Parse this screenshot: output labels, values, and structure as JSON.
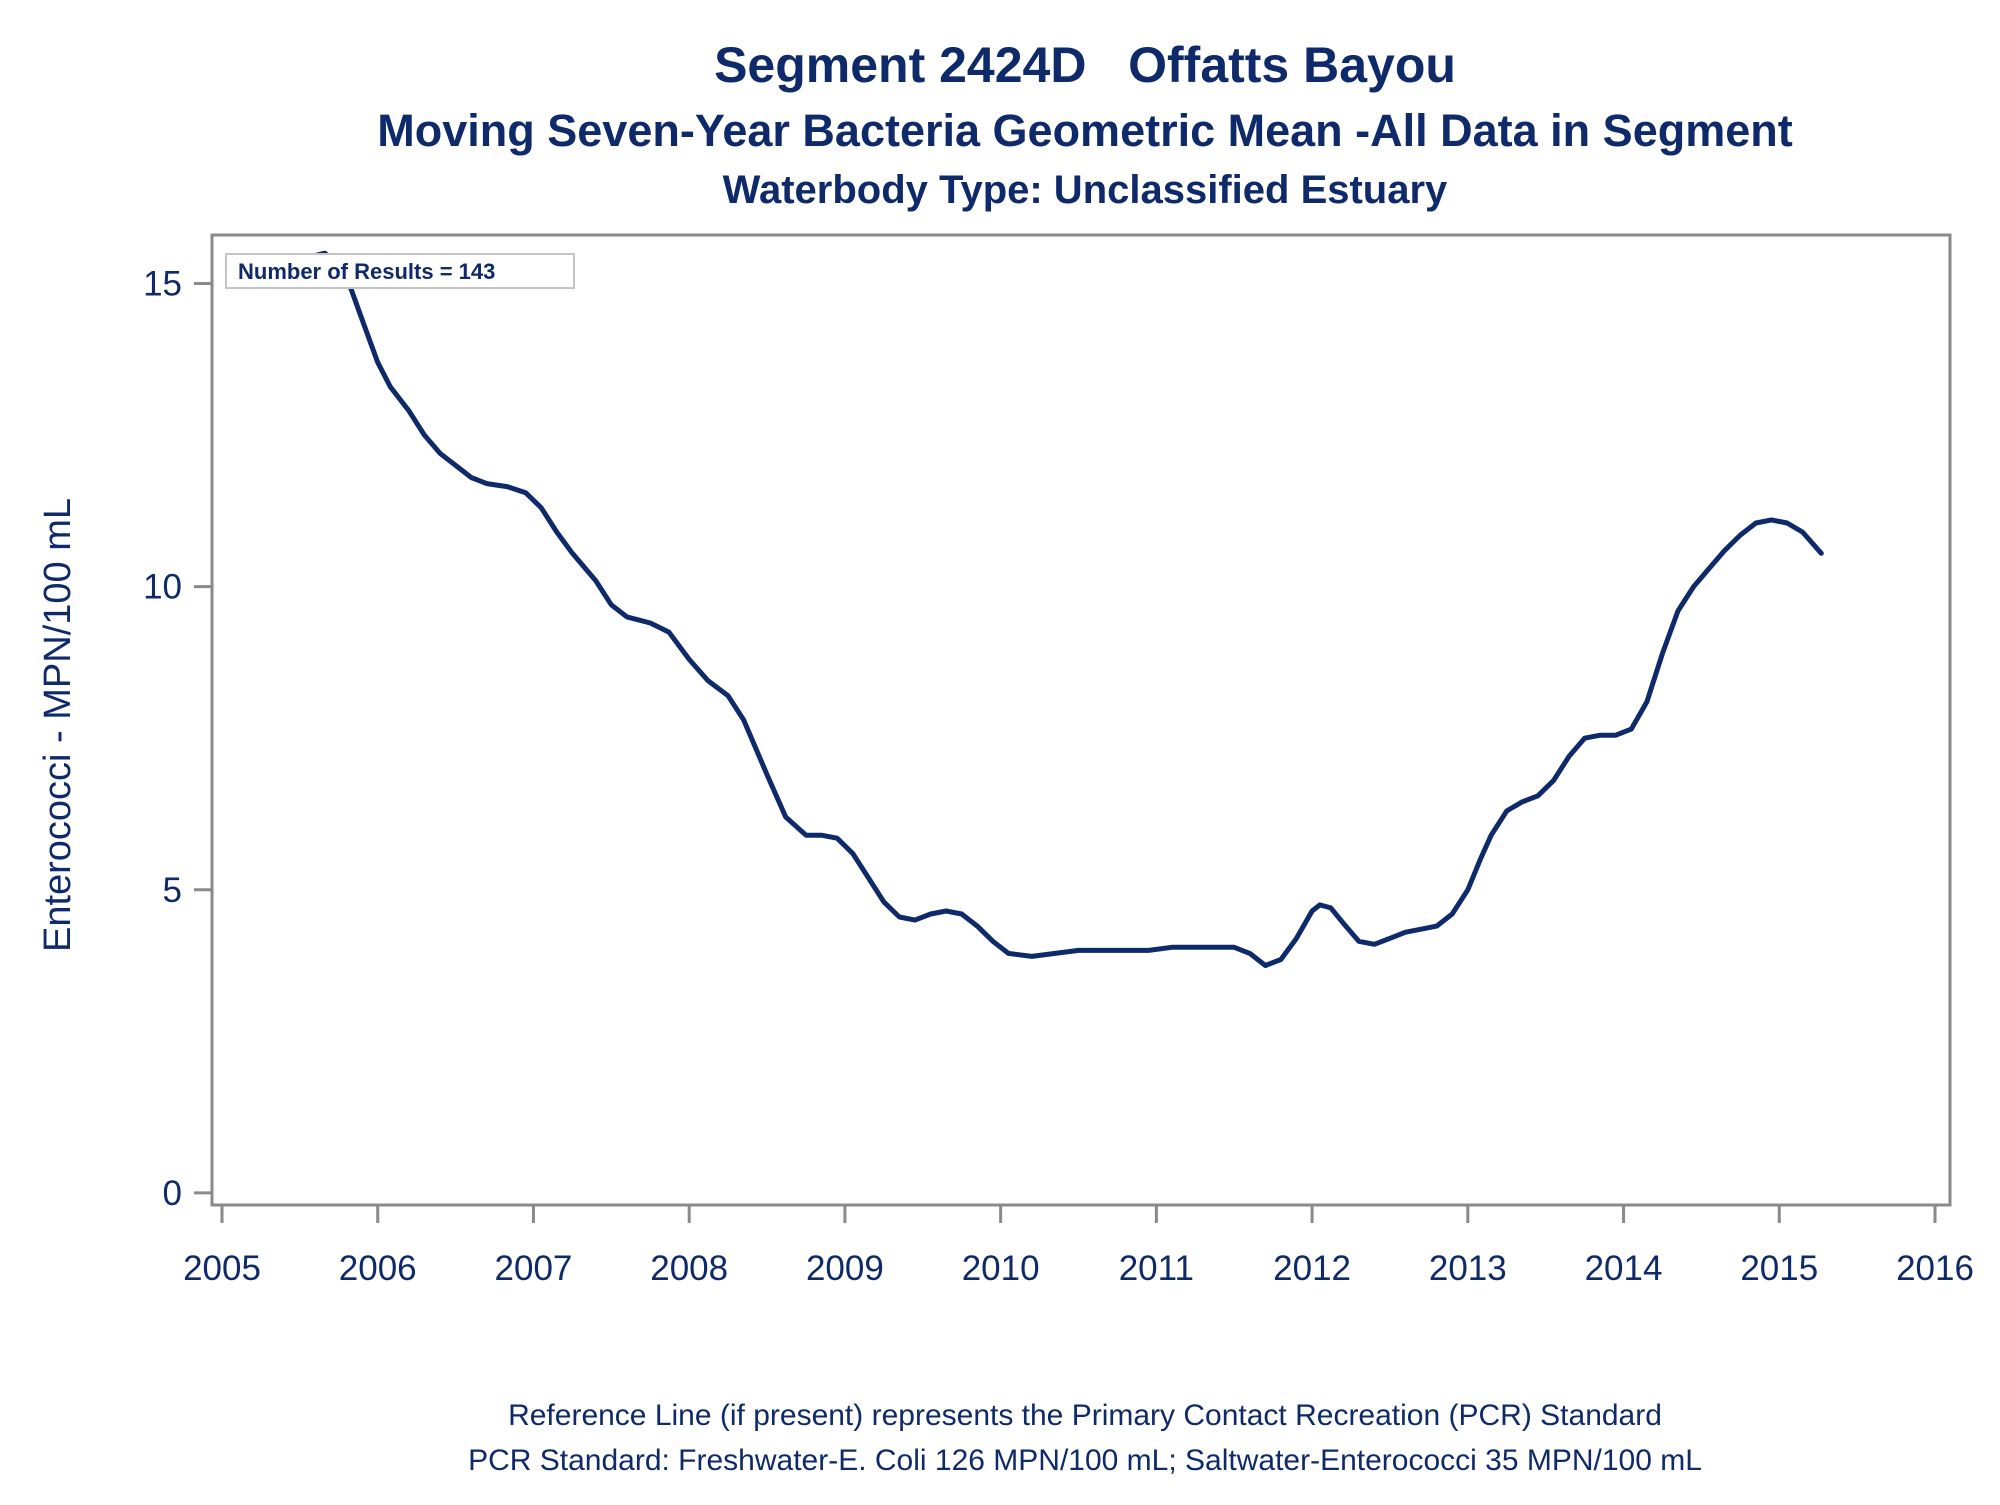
{
  "chart_data": {
    "type": "line",
    "title": "Segment 2424D   Offatts Bayou",
    "subtitle": "Moving Seven-Year Bacteria Geometric Mean -All Data in Segment",
    "subtitle2": "Waterbody Type: Unclassified Estuary",
    "ylabel": "Enterococci - MPN/100 mL",
    "xlabel": "",
    "xlim": [
      2005,
      2016
    ],
    "ylim": [
      -0.2,
      15.8
    ],
    "x_ticks": [
      2005,
      2006,
      2007,
      2008,
      2009,
      2010,
      2011,
      2012,
      2013,
      2014,
      2015,
      2016
    ],
    "x_tick_labels": [
      "2005",
      "2006",
      "2007",
      "2008",
      "2009",
      "2010",
      "2011",
      "2012",
      "2013",
      "2014",
      "2015",
      "2016"
    ],
    "y_ticks": [
      0,
      5,
      10,
      15
    ],
    "y_tick_labels": [
      "0",
      "5",
      "10",
      "15"
    ],
    "grid": false,
    "annotation": "Number of Results = 143",
    "footnotes": [
      "Reference Line (if present) represents the Primary Contact Recreation (PCR) Standard",
      "PCR Standard: Freshwater-E. Coli 126 MPN/100 mL; Saltwater-Enterococci 35 MPN/100 mL"
    ],
    "line_color": "#0f2a6b",
    "series": [
      {
        "values": [
          [
            2005.58,
            15.45
          ],
          [
            2005.66,
            15.5
          ],
          [
            2005.75,
            15.3
          ],
          [
            2005.83,
            14.9
          ],
          [
            2005.9,
            14.4
          ],
          [
            2006.0,
            13.7
          ],
          [
            2006.08,
            13.3
          ],
          [
            2006.2,
            12.9
          ],
          [
            2006.3,
            12.5
          ],
          [
            2006.4,
            12.2
          ],
          [
            2006.5,
            12.0
          ],
          [
            2006.6,
            11.8
          ],
          [
            2006.7,
            11.7
          ],
          [
            2006.83,
            11.65
          ],
          [
            2006.95,
            11.55
          ],
          [
            2007.05,
            11.3
          ],
          [
            2007.15,
            10.9
          ],
          [
            2007.25,
            10.55
          ],
          [
            2007.4,
            10.1
          ],
          [
            2007.5,
            9.7
          ],
          [
            2007.6,
            9.5
          ],
          [
            2007.75,
            9.4
          ],
          [
            2007.87,
            9.25
          ],
          [
            2008.0,
            8.8
          ],
          [
            2008.12,
            8.45
          ],
          [
            2008.25,
            8.2
          ],
          [
            2008.35,
            7.8
          ],
          [
            2008.5,
            6.9
          ],
          [
            2008.62,
            6.2
          ],
          [
            2008.75,
            5.9
          ],
          [
            2008.85,
            5.9
          ],
          [
            2008.95,
            5.85
          ],
          [
            2009.05,
            5.6
          ],
          [
            2009.15,
            5.2
          ],
          [
            2009.25,
            4.8
          ],
          [
            2009.35,
            4.55
          ],
          [
            2009.45,
            4.5
          ],
          [
            2009.55,
            4.6
          ],
          [
            2009.65,
            4.65
          ],
          [
            2009.75,
            4.6
          ],
          [
            2009.85,
            4.4
          ],
          [
            2009.95,
            4.15
          ],
          [
            2010.05,
            3.95
          ],
          [
            2010.2,
            3.9
          ],
          [
            2010.35,
            3.95
          ],
          [
            2010.5,
            4.0
          ],
          [
            2010.65,
            4.0
          ],
          [
            2010.8,
            4.0
          ],
          [
            2010.95,
            4.0
          ],
          [
            2011.1,
            4.05
          ],
          [
            2011.25,
            4.05
          ],
          [
            2011.4,
            4.05
          ],
          [
            2011.5,
            4.05
          ],
          [
            2011.6,
            3.95
          ],
          [
            2011.7,
            3.75
          ],
          [
            2011.8,
            3.85
          ],
          [
            2011.9,
            4.2
          ],
          [
            2012.0,
            4.65
          ],
          [
            2012.05,
            4.75
          ],
          [
            2012.12,
            4.7
          ],
          [
            2012.2,
            4.45
          ],
          [
            2012.3,
            4.15
          ],
          [
            2012.4,
            4.1
          ],
          [
            2012.5,
            4.2
          ],
          [
            2012.6,
            4.3
          ],
          [
            2012.7,
            4.35
          ],
          [
            2012.8,
            4.4
          ],
          [
            2012.9,
            4.6
          ],
          [
            2013.0,
            5.0
          ],
          [
            2013.08,
            5.5
          ],
          [
            2013.15,
            5.9
          ],
          [
            2013.25,
            6.3
          ],
          [
            2013.35,
            6.45
          ],
          [
            2013.45,
            6.55
          ],
          [
            2013.55,
            6.8
          ],
          [
            2013.65,
            7.2
          ],
          [
            2013.75,
            7.5
          ],
          [
            2013.85,
            7.55
          ],
          [
            2013.95,
            7.55
          ],
          [
            2014.05,
            7.65
          ],
          [
            2014.15,
            8.1
          ],
          [
            2014.25,
            8.9
          ],
          [
            2014.35,
            9.6
          ],
          [
            2014.45,
            10.0
          ],
          [
            2014.55,
            10.3
          ],
          [
            2014.65,
            10.6
          ],
          [
            2014.75,
            10.85
          ],
          [
            2014.85,
            11.05
          ],
          [
            2014.95,
            11.1
          ],
          [
            2015.05,
            11.05
          ],
          [
            2015.15,
            10.9
          ],
          [
            2015.27,
            10.55
          ]
        ]
      }
    ]
  }
}
